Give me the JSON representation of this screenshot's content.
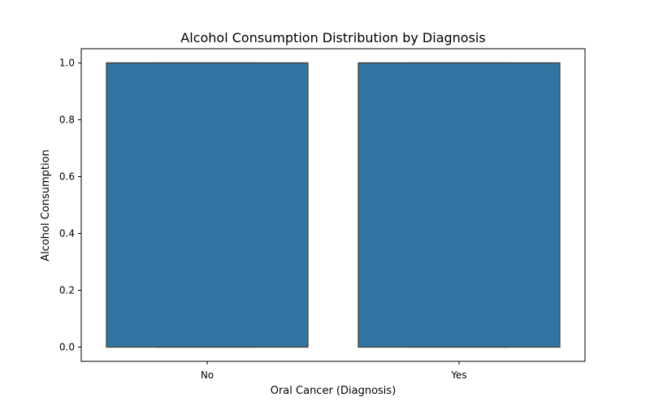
{
  "chart_data": {
    "type": "boxplot",
    "title": "Alcohol Consumption Distribution by Diagnosis",
    "xlabel": "Oral Cancer (Diagnosis)",
    "ylabel": "Alcohol Consumption",
    "categories": [
      "No",
      "Yes"
    ],
    "boxes": [
      {
        "category": "No",
        "min": 0.0,
        "q1": 0.0,
        "median": 1.0,
        "q3": 1.0,
        "max": 1.0
      },
      {
        "category": "Yes",
        "min": 0.0,
        "q1": 0.0,
        "median": 1.0,
        "q3": 1.0,
        "max": 1.0
      }
    ],
    "ylim": [
      -0.05,
      1.05
    ],
    "yticks": [
      0.0,
      0.2,
      0.4,
      0.6,
      0.8,
      1.0
    ],
    "ytick_labels": [
      "0.0",
      "0.2",
      "0.4",
      "0.6",
      "0.8",
      "1.0"
    ],
    "grid": false,
    "box_color": "#3274a1",
    "edge_color": "#3f3f3f"
  }
}
